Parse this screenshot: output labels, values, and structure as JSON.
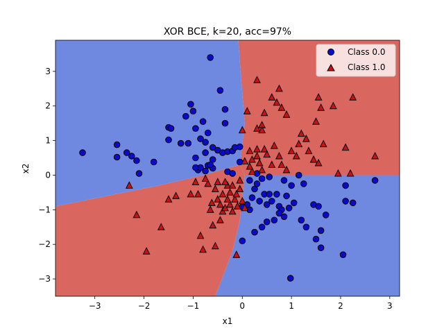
{
  "chart_data": {
    "type": "scatter",
    "title": "XOR BCE, k=20, acc=97%",
    "xlabel": "x1",
    "ylabel": "x2",
    "xlim": [
      -3.8,
      3.2
    ],
    "ylim": [
      -3.5,
      3.9
    ],
    "xticks": [
      -3,
      -2,
      -1,
      0,
      1,
      2,
      3
    ],
    "yticks": [
      -3,
      -2,
      -1,
      0,
      1,
      2,
      3
    ],
    "grid": false,
    "legend_position": "top-right",
    "background_regions": {
      "class_0_color": "#7089e0",
      "class_1_color": "#d9665f",
      "class_0_regions": [
        [
          [
            -3.8,
            3.9
          ],
          [
            -0.08,
            3.9
          ],
          [
            -0.03,
            2.9
          ],
          [
            0.05,
            1.5
          ],
          [
            -0.05,
            0.3
          ],
          [
            -0.8,
            0.0
          ],
          [
            -1.7,
            -0.3
          ],
          [
            -3.8,
            -0.9
          ]
        ],
        [
          [
            3.2,
            0.0
          ],
          [
            0.05,
            0.0
          ],
          [
            -0.05,
            -1.3
          ],
          [
            -0.2,
            -2.2
          ],
          [
            -0.55,
            -3.5
          ],
          [
            3.2,
            -3.5
          ]
        ]
      ],
      "class_1_regions": [
        [
          [
            -0.08,
            3.9
          ],
          [
            3.2,
            3.9
          ],
          [
            3.2,
            0.0
          ],
          [
            0.05,
            0.0
          ],
          [
            -0.05,
            0.3
          ],
          [
            0.05,
            1.5
          ],
          [
            -0.03,
            2.9
          ]
        ],
        [
          [
            -3.8,
            -0.9
          ],
          [
            -1.7,
            -0.3
          ],
          [
            -0.8,
            0.0
          ],
          [
            -0.05,
            0.3
          ],
          [
            0.05,
            0.0
          ],
          [
            -0.05,
            -1.3
          ],
          [
            -0.2,
            -2.2
          ],
          [
            -0.55,
            -3.5
          ],
          [
            -3.8,
            -3.5
          ]
        ]
      ]
    },
    "series": [
      {
        "name": "Class 0.0",
        "marker": "circle",
        "color": "#0a0acc",
        "points": [
          [
            -3.25,
            0.65
          ],
          [
            -2.55,
            0.88
          ],
          [
            -2.55,
            0.52
          ],
          [
            -2.35,
            0.65
          ],
          [
            -2.25,
            0.55
          ],
          [
            -2.15,
            0.42
          ],
          [
            -2.1,
            0.05
          ],
          [
            -1.8,
            0.38
          ],
          [
            -1.5,
            1.38
          ],
          [
            -1.45,
            1.35
          ],
          [
            -1.5,
            1.02
          ],
          [
            -1.25,
            0.92
          ],
          [
            -1.15,
            1.7
          ],
          [
            -1.05,
            2.05
          ],
          [
            -1.0,
            1.85
          ],
          [
            -0.95,
            1.35
          ],
          [
            -1.1,
            0.92
          ],
          [
            -0.95,
            0.5
          ],
          [
            -0.9,
            0.15
          ],
          [
            -0.85,
            0.22
          ],
          [
            -0.85,
            1.05
          ],
          [
            -0.8,
            1.55
          ],
          [
            -0.75,
            0.95
          ],
          [
            -0.65,
            3.4
          ],
          [
            -0.6,
            0.8
          ],
          [
            -0.5,
            0.72
          ],
          [
            -0.45,
            2.45
          ],
          [
            -0.4,
            0.65
          ],
          [
            -0.35,
            1.5
          ],
          [
            -0.35,
            1.9
          ],
          [
            -0.3,
            0.68
          ],
          [
            -0.2,
            0.7
          ],
          [
            -0.15,
            0.8
          ],
          [
            -0.05,
            0.82
          ],
          [
            -0.05,
            0.38
          ],
          [
            -0.3,
            0.1
          ],
          [
            -0.2,
            0.05
          ],
          [
            -0.7,
            0.28
          ],
          [
            -0.75,
            0.65
          ],
          [
            -0.6,
            0.45
          ],
          [
            -0.6,
            0.2
          ],
          [
            -0.75,
            0.12
          ],
          [
            -0.95,
            0.22
          ],
          [
            -0.7,
            1.22
          ],
          [
            -0.65,
            0.3
          ],
          [
            0.15,
            -0.15
          ],
          [
            0.25,
            -0.4
          ],
          [
            0.3,
            0.05
          ],
          [
            0.4,
            -0.1
          ],
          [
            0.45,
            -0.55
          ],
          [
            0.5,
            -0.85
          ],
          [
            0.55,
            -0.55
          ],
          [
            0.6,
            -0.75
          ],
          [
            0.7,
            -0.55
          ],
          [
            0.75,
            -0.9
          ],
          [
            0.8,
            -1.0
          ],
          [
            0.85,
            -0.15
          ],
          [
            0.9,
            -0.6
          ],
          [
            0.95,
            -0.95
          ],
          [
            1.0,
            -0.3
          ],
          [
            1.05,
            -0.8
          ],
          [
            1.15,
            0.0
          ],
          [
            1.2,
            -1.3
          ],
          [
            1.25,
            -0.25
          ],
          [
            1.3,
            -1.5
          ],
          [
            1.45,
            -0.85
          ],
          [
            1.5,
            -1.85
          ],
          [
            1.55,
            -0.9
          ],
          [
            1.6,
            -1.6
          ],
          [
            1.6,
            -2.1
          ],
          [
            1.7,
            -1.15
          ],
          [
            2.05,
            -2.3
          ],
          [
            2.1,
            -0.75
          ],
          [
            2.1,
            -0.3
          ],
          [
            2.25,
            -0.8
          ],
          [
            2.7,
            -0.15
          ],
          [
            0.0,
            -1.9
          ],
          [
            0.25,
            -1.65
          ],
          [
            0.4,
            -1.5
          ],
          [
            0.5,
            -1.35
          ],
          [
            0.65,
            -1.3
          ],
          [
            0.75,
            -1.1
          ],
          [
            0.85,
            -1.2
          ],
          [
            0.98,
            -2.98
          ],
          [
            0.2,
            -0.65
          ],
          [
            0.1,
            -0.85
          ],
          [
            0.35,
            -0.75
          ],
          [
            0.15,
            -1.0
          ],
          [
            0.55,
            -0.05
          ],
          [
            0.0,
            -0.92
          ],
          [
            0.3,
            -0.25
          ]
        ]
      },
      {
        "name": "Class 1.0",
        "marker": "triangle",
        "color": "#cc1111",
        "points": [
          [
            0.3,
            2.75
          ],
          [
            0.6,
            2.25
          ],
          [
            0.75,
            2.5
          ],
          [
            0.7,
            2.1
          ],
          [
            0.8,
            1.95
          ],
          [
            0.9,
            1.75
          ],
          [
            0.45,
            1.8
          ],
          [
            0.1,
            1.85
          ],
          [
            0.4,
            1.45
          ],
          [
            0.3,
            1.35
          ],
          [
            0.0,
            1.3
          ],
          [
            0.4,
            1.3
          ],
          [
            0.65,
            0.85
          ],
          [
            0.45,
            0.75
          ],
          [
            0.3,
            0.75
          ],
          [
            0.5,
            0.6
          ],
          [
            0.3,
            0.55
          ],
          [
            0.2,
            0.45
          ],
          [
            0.35,
            0.35
          ],
          [
            0.6,
            0.3
          ],
          [
            0.15,
            0.25
          ],
          [
            0.4,
            0.15
          ],
          [
            0.75,
            0.55
          ],
          [
            0.8,
            0.3
          ],
          [
            0.9,
            0.15
          ],
          [
            1.0,
            0.7
          ],
          [
            1.1,
            0.55
          ],
          [
            1.15,
            0.9
          ],
          [
            1.2,
            1.2
          ],
          [
            1.3,
            1.05
          ],
          [
            1.35,
            0.7
          ],
          [
            1.5,
            1.55
          ],
          [
            1.55,
            2.25
          ],
          [
            1.6,
            1.95
          ],
          [
            1.65,
            0.9
          ],
          [
            1.85,
            2.0
          ],
          [
            2.25,
            2.25
          ],
          [
            2.1,
            0.8
          ],
          [
            2.2,
            0.05
          ],
          [
            1.95,
            0.05
          ],
          [
            1.55,
            0.35
          ],
          [
            1.45,
            0.45
          ],
          [
            2.7,
            0.55
          ],
          [
            0.15,
            0.7
          ],
          [
            0.05,
            0.4
          ],
          [
            0.2,
            0.1
          ],
          [
            -2.3,
            -0.3
          ],
          [
            -2.15,
            -1.15
          ],
          [
            -1.95,
            -2.2
          ],
          [
            -1.65,
            -1.5
          ],
          [
            -1.5,
            -0.7
          ],
          [
            -1.35,
            -0.6
          ],
          [
            -1.05,
            -0.55
          ],
          [
            -0.95,
            -0.2
          ],
          [
            -0.9,
            -0.55
          ],
          [
            -0.85,
            -1.75
          ],
          [
            -0.8,
            -2.15
          ],
          [
            -0.7,
            -0.25
          ],
          [
            -0.65,
            -1.0
          ],
          [
            -0.6,
            -1.45
          ],
          [
            -0.55,
            -2.05
          ],
          [
            -0.5,
            -0.7
          ],
          [
            -0.45,
            -0.85
          ],
          [
            -0.45,
            -1.3
          ],
          [
            -0.4,
            -1.05
          ],
          [
            -0.35,
            -0.95
          ],
          [
            -0.3,
            -0.3
          ],
          [
            -0.25,
            -0.5
          ],
          [
            -0.25,
            -0.85
          ],
          [
            -0.2,
            -1.05
          ],
          [
            -0.15,
            -0.7
          ],
          [
            -0.1,
            -0.9
          ],
          [
            -0.05,
            -0.15
          ],
          [
            0.0,
            -0.75
          ],
          [
            0.05,
            -0.95
          ],
          [
            -0.12,
            -2.3
          ],
          [
            -0.4,
            -0.55
          ],
          [
            -0.75,
            -0.1
          ],
          [
            -0.55,
            -0.4
          ],
          [
            -0.35,
            -0.2
          ],
          [
            -0.3,
            -0.7
          ],
          [
            -0.2,
            -0.3
          ],
          [
            -0.12,
            -0.55
          ],
          [
            -0.05,
            -0.4
          ],
          [
            -0.5,
            -0.2
          ],
          [
            -0.62,
            -0.8
          ]
        ]
      }
    ]
  }
}
